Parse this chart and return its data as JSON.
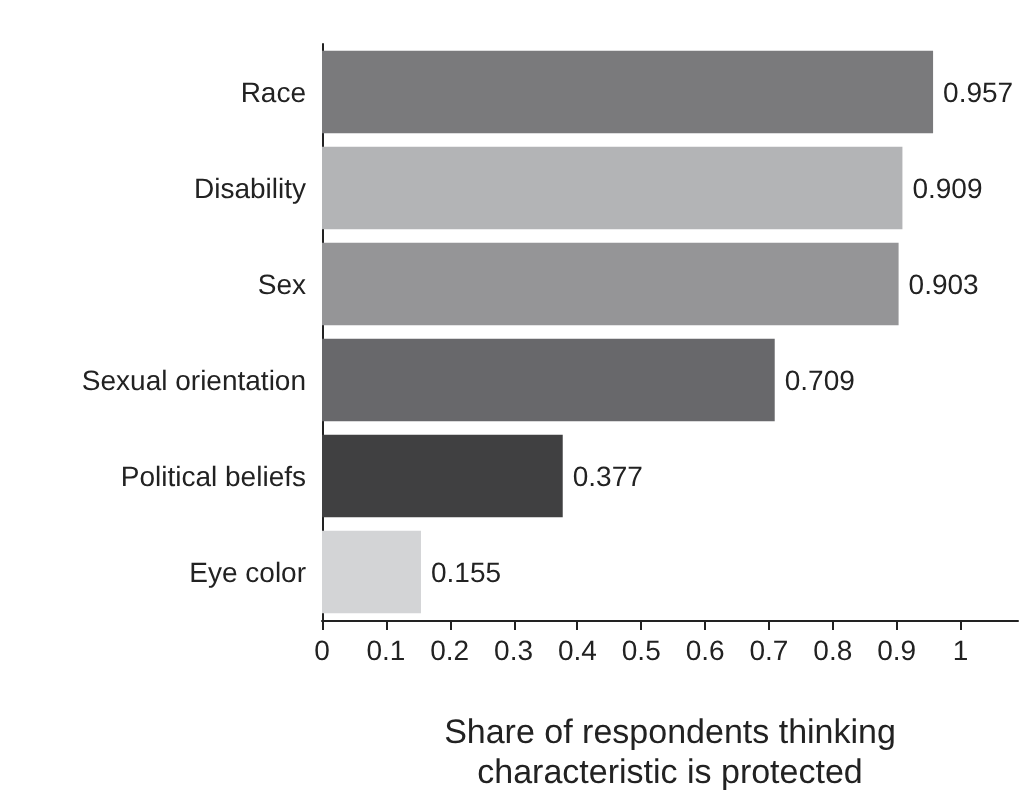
{
  "chart_data": {
    "type": "bar",
    "orientation": "horizontal",
    "xlabel": "Share of respondents thinking\ncharacteristic is protected",
    "categories": [
      "Race",
      "Disability",
      "Sex",
      "Sexual orientation",
      "Political beliefs",
      "Eye color"
    ],
    "values": [
      0.957,
      0.909,
      0.903,
      0.709,
      0.377,
      0.155
    ],
    "colors": [
      "#7a7a7c",
      "#b3b4b6",
      "#959597",
      "#68686b",
      "#404041",
      "#d3d4d6"
    ],
    "xlim": [
      0,
      1.09
    ],
    "xticks": [
      0,
      0.1,
      0.2,
      0.3,
      0.4,
      0.5,
      0.6,
      0.7,
      0.8,
      0.9,
      1
    ],
    "data_labels": true,
    "grid": false
  }
}
